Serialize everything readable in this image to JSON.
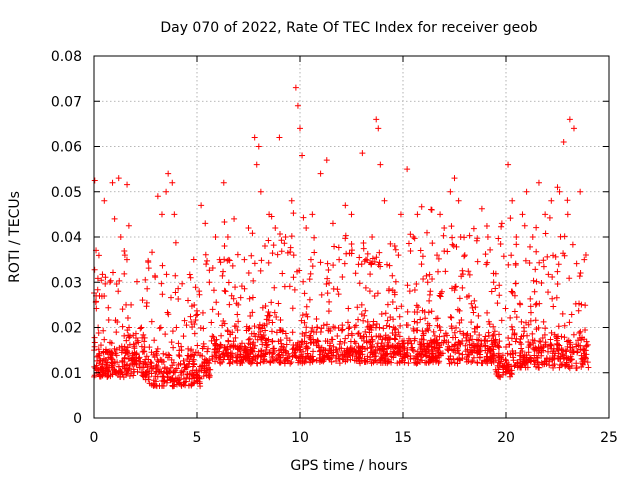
{
  "chart_data": {
    "type": "scatter",
    "title": "Day 070 of 2022, Rate Of TEC Index for receiver geob",
    "xlabel": "GPS time / hours",
    "ylabel": "ROTI / TECUs",
    "xlim": [
      0,
      25
    ],
    "ylim": [
      0,
      0.08
    ],
    "x_ticks": [
      "0",
      "5",
      "10",
      "15",
      "20",
      "25"
    ],
    "y_ticks": [
      "0",
      "0.01",
      "0.02",
      "0.03",
      "0.04",
      "0.05",
      "0.06",
      "0.07",
      "0.08"
    ],
    "grid": true,
    "marker": "+",
    "color": "#ff0000",
    "series": [
      {
        "x": [
          0.1,
          0.2,
          0.5,
          0.9,
          1.0,
          1.2,
          1.3,
          1.5,
          1.6,
          1.7,
          1.8,
          2.4,
          2.5,
          3.1,
          3.3,
          3.5,
          3.6,
          3.8,
          3.9,
          4.0,
          4.6,
          5.2,
          5.4,
          5.6,
          5.9,
          6.1,
          6.3,
          6.5,
          6.8,
          7.0,
          7.3,
          7.5,
          7.8,
          7.9,
          8.0,
          8.1,
          8.3,
          8.5,
          8.8,
          9.0,
          9.3,
          9.6,
          9.8,
          9.9,
          10.0,
          10.1,
          10.3,
          10.6,
          11.0,
          11.3,
          11.6,
          11.9,
          12.2,
          12.5,
          12.7,
          13.0,
          13.2,
          13.5,
          13.7,
          13.8,
          13.9,
          14.1,
          14.6,
          14.9,
          15.2,
          15.5,
          15.7,
          15.9,
          16.2,
          16.4,
          16.8,
          17.0,
          17.3,
          17.5,
          17.7,
          17.8,
          18.0,
          18.2,
          18.6,
          19.0,
          19.4,
          19.8,
          20.1,
          20.3,
          20.5,
          20.8,
          21.0,
          21.3,
          21.6,
          21.9,
          22.2,
          22.5,
          22.6,
          22.8,
          23.0,
          23.1,
          23.3,
          23.6,
          23.8,
          23.9
        ],
        "y": [
          0.027,
          0.02,
          0.048,
          0.052,
          0.044,
          0.053,
          0.04,
          0.036,
          0.035,
          0.02,
          0.025,
          0.012,
          0.01,
          0.049,
          0.045,
          0.05,
          0.054,
          0.052,
          0.045,
          0.02,
          0.012,
          0.047,
          0.043,
          0.03,
          0.04,
          0.035,
          0.052,
          0.04,
          0.044,
          0.025,
          0.035,
          0.042,
          0.062,
          0.056,
          0.06,
          0.05,
          0.038,
          0.045,
          0.042,
          0.062,
          0.04,
          0.048,
          0.073,
          0.069,
          0.064,
          0.058,
          0.042,
          0.045,
          0.054,
          0.057,
          0.043,
          0.035,
          0.047,
          0.045,
          0.032,
          0.025,
          0.035,
          0.04,
          0.066,
          0.064,
          0.056,
          0.048,
          0.038,
          0.045,
          0.055,
          0.04,
          0.045,
          0.034,
          0.03,
          0.046,
          0.045,
          0.042,
          0.05,
          0.053,
          0.048,
          0.04,
          0.036,
          0.027,
          0.02,
          0.018,
          0.03,
          0.043,
          0.056,
          0.048,
          0.04,
          0.045,
          0.05,
          0.04,
          0.052,
          0.045,
          0.048,
          0.051,
          0.05,
          0.061,
          0.045,
          0.066,
          0.064,
          0.05,
          0.035,
          0.016
        ]
      }
    ]
  }
}
